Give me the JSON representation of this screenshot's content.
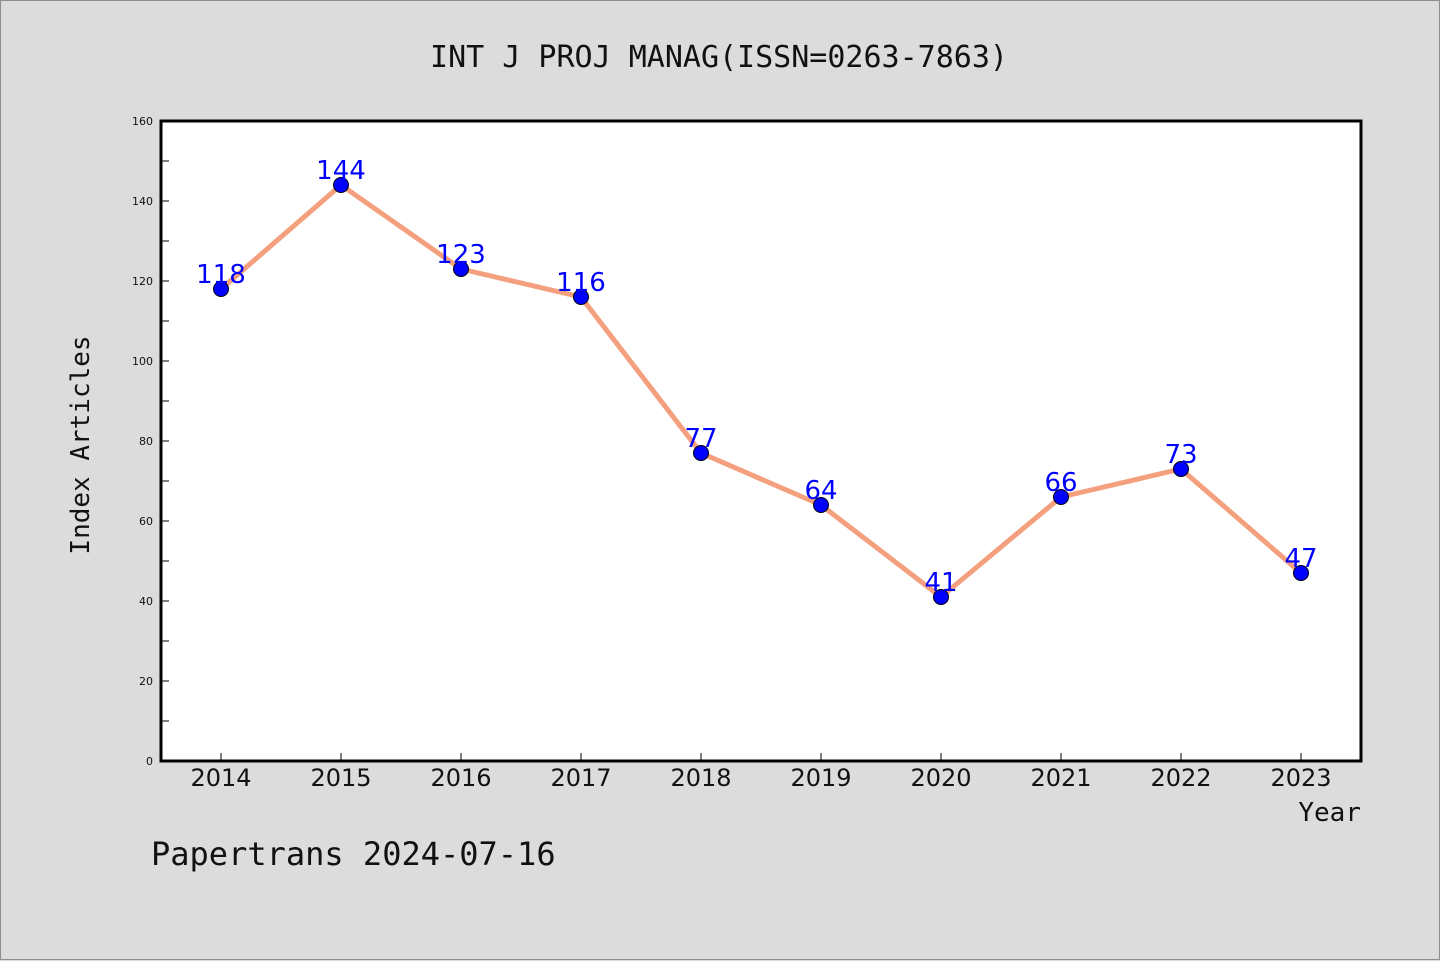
{
  "chart_data": {
    "type": "line",
    "title": "INT J PROJ MANAG(ISSN=0263-7863)",
    "xlabel": "Year",
    "ylabel": "Index Articles",
    "categories": [
      "2014",
      "2015",
      "2016",
      "2017",
      "2018",
      "2019",
      "2020",
      "2021",
      "2022",
      "2023"
    ],
    "values": [
      118,
      144,
      123,
      116,
      77,
      64,
      41,
      66,
      73,
      47
    ],
    "ylim": [
      0,
      160
    ],
    "yticks": [
      "0",
      "20",
      "40",
      "60",
      "80",
      "100",
      "120",
      "140",
      "160"
    ],
    "grid": false,
    "line_color": "#f4a07e",
    "marker_color": "#0000ff",
    "label_color": "#0000ff"
  },
  "footer": "Papertrans 2024-07-16"
}
